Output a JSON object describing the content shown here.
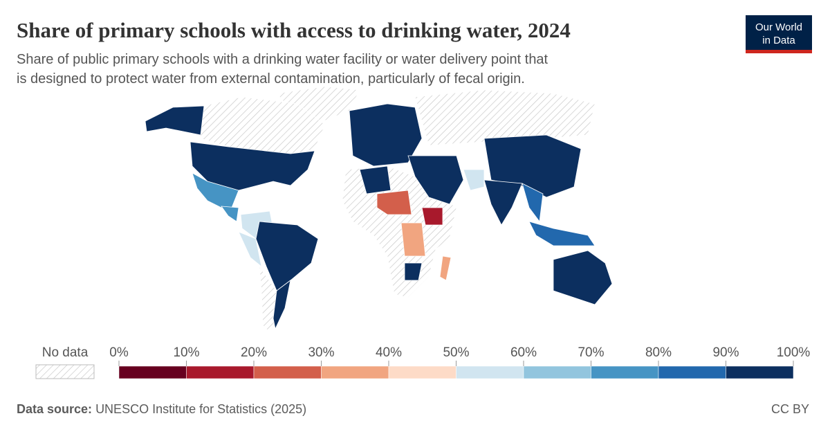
{
  "header": {
    "title": "Share of primary schools with access to drinking water, 2024",
    "subtitle": "Share of public primary schools with a drinking water facility or water delivery point that is designed to protect water from external contamination, particularly of fecal origin.",
    "logo": [
      "Our World",
      "in Data"
    ]
  },
  "legend": {
    "no_data": "No data",
    "ticks": [
      {
        "value": 0,
        "label": "0%"
      },
      {
        "value": 10,
        "label": "10%"
      },
      {
        "value": 20,
        "label": "20%"
      },
      {
        "value": 30,
        "label": "30%"
      },
      {
        "value": 40,
        "label": "40%"
      },
      {
        "value": 50,
        "label": "50%"
      },
      {
        "value": 60,
        "label": "60%"
      },
      {
        "value": 70,
        "label": "70%"
      },
      {
        "value": 80,
        "label": "80%"
      },
      {
        "value": 90,
        "label": "90%"
      },
      {
        "value": 100,
        "label": "100%"
      }
    ],
    "colors": [
      "#67001f",
      "#a8192c",
      "#d35f4b",
      "#f1a580",
      "#fddbc7",
      "#d1e5f0",
      "#92c5de",
      "#4694c4",
      "#2268ad",
      "#0c2f5f"
    ]
  },
  "footer": {
    "source_label": "Data source:",
    "source": "UNESCO Institute for Statistics (2025)",
    "license": "CC BY"
  }
}
